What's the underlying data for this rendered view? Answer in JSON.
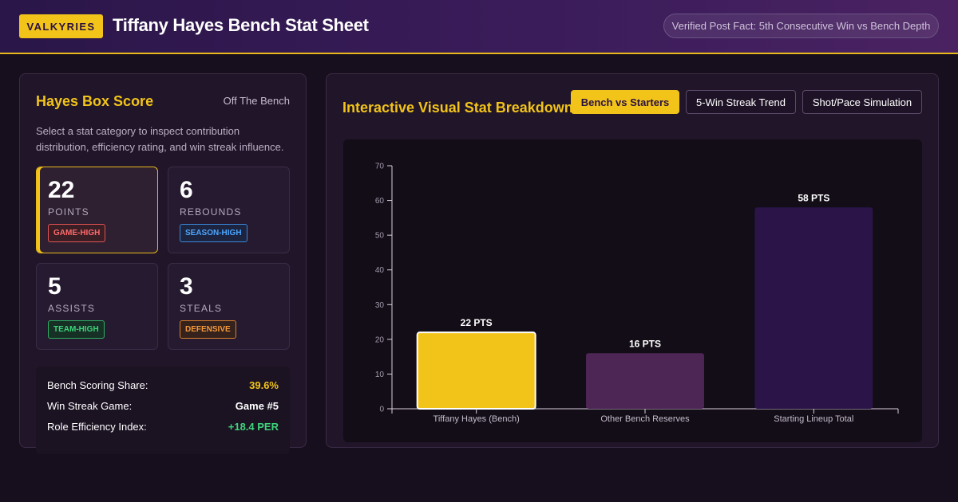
{
  "header": {
    "brand": "VALKYRIES",
    "title": "Tiffany Hayes Bench Stat Sheet",
    "fact": "Verified Post Fact: 5th Consecutive Win vs Bench Depth"
  },
  "box_score": {
    "title": "Hayes Box Score",
    "subtitle": "Off The Bench",
    "description": "Select a stat category to inspect contribution distribution, efficiency rating, and win streak influence.",
    "stats": [
      {
        "value": "22",
        "label": "POINTS",
        "badge": "GAME-HIGH"
      },
      {
        "value": "6",
        "label": "REBOUNDS",
        "badge": "SEASON-HIGH"
      },
      {
        "value": "5",
        "label": "ASSISTS",
        "badge": "TEAM-HIGH"
      },
      {
        "value": "3",
        "label": "STEALS",
        "badge": "DEFENSIVE"
      }
    ],
    "summary": [
      {
        "label": "Bench Scoring Share:",
        "value": "39.6%"
      },
      {
        "label": "Win Streak Game:",
        "value": "Game #5"
      },
      {
        "label": "Role Efficiency Index:",
        "value": "+18.4 PER"
      }
    ]
  },
  "breakdown": {
    "title": "Interactive Visual Stat Breakdown",
    "tabs": [
      "Bench vs Starters",
      "5-Win Streak Trend",
      "Shot/Pace Simulation"
    ],
    "active_tab": 0
  },
  "colors": {
    "accent": "#f2c41a",
    "bar_hayes": "#f2c41a",
    "bar_bench": "#4e2656",
    "bar_starters": "#2a1448"
  },
  "chart_data": {
    "type": "bar",
    "categories": [
      "Tiffany Hayes (Bench)",
      "Other Bench Reserves",
      "Starting Lineup Total"
    ],
    "values": [
      22,
      16,
      58
    ],
    "data_labels": [
      "22 PTS",
      "16 PTS",
      "58 PTS"
    ],
    "ylim": [
      0,
      70
    ],
    "yticks": [
      0,
      10,
      20,
      30,
      40,
      50,
      60,
      70
    ],
    "grid": false,
    "legend": false
  }
}
